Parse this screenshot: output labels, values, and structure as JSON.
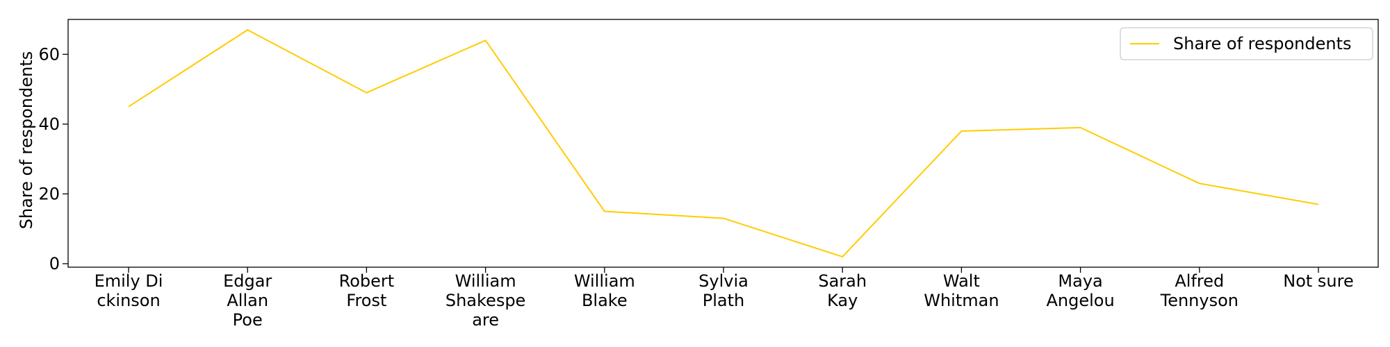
{
  "chart_data": {
    "type": "line",
    "categories": [
      [
        "Emily Di",
        "ckinson"
      ],
      [
        "Edgar",
        "Allan",
        "Poe"
      ],
      [
        "Robert",
        "Frost"
      ],
      [
        "William",
        "Shakespe",
        "are"
      ],
      [
        "William",
        "Blake"
      ],
      [
        "Sylvia",
        "Plath"
      ],
      [
        "Sarah",
        "Kay"
      ],
      [
        "Walt",
        "Whitman"
      ],
      [
        "Maya",
        "Angelou"
      ],
      [
        "Alfred",
        "Tennyson"
      ],
      [
        "Not sure"
      ]
    ],
    "series": [
      {
        "name": "Share of respondents",
        "color": "#FFCC00",
        "values": [
          45,
          67,
          49,
          64,
          15,
          13,
          2,
          38,
          39,
          23,
          17
        ]
      }
    ],
    "ylabel": "Share of respondents",
    "xlabel": "",
    "ylim": [
      -1,
      70
    ],
    "yticks": [
      0,
      20,
      40,
      60
    ],
    "grid": false,
    "legend": "top-right"
  }
}
